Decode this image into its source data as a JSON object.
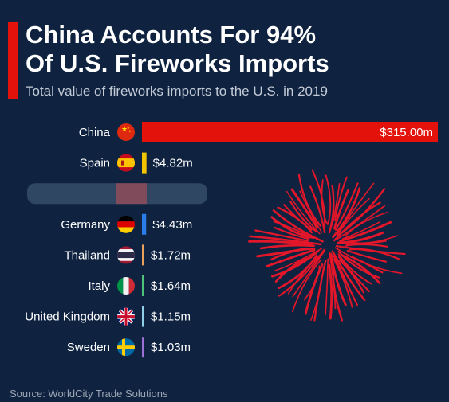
{
  "header": {
    "title_line1": "China Accounts For 94%",
    "title_line2": "Of U.S. Fireworks Imports",
    "subtitle": "Total value of fireworks imports to the U.S. in 2019"
  },
  "footer": {
    "source": "Source: WorldCity Trade Solutions"
  },
  "colors": {
    "background": "#0f2341",
    "accent": "#e3120b",
    "china_bar": "#e3120b"
  },
  "chart_data": {
    "type": "bar",
    "orientation": "horizontal",
    "title": "China Accounts For 94% Of U.S. Fireworks Imports",
    "subtitle": "Total value of fireworks imports to the U.S. in 2019",
    "unit": "$m",
    "categories": [
      "China",
      "Spain",
      "",
      "Germany",
      "Thailand",
      "Italy",
      "United Kingdom",
      "Sweden"
    ],
    "values": [
      315.0,
      4.82,
      null,
      4.43,
      1.72,
      1.64,
      1.15,
      1.03
    ],
    "value_labels": [
      "$315.00m",
      "$4.82m",
      "",
      "$4.43m",
      "$1.72m",
      "$1.64m",
      "$1.15m",
      "$1.03m"
    ],
    "flags": [
      "china-flag-icon",
      "spain-flag-icon",
      "obscured-flag-icon",
      "germany-flag-icon",
      "thailand-flag-icon",
      "italy-flag-icon",
      "uk-flag-icon",
      "sweden-flag-icon"
    ],
    "bar_colors": [
      "#e3120b",
      "#f2c500",
      "#ffffff",
      "#2b7de9",
      "#e8a05a",
      "#4fc27a",
      "#8fd0e8",
      "#9b6fd6"
    ],
    "xlim": [
      0,
      315
    ]
  }
}
